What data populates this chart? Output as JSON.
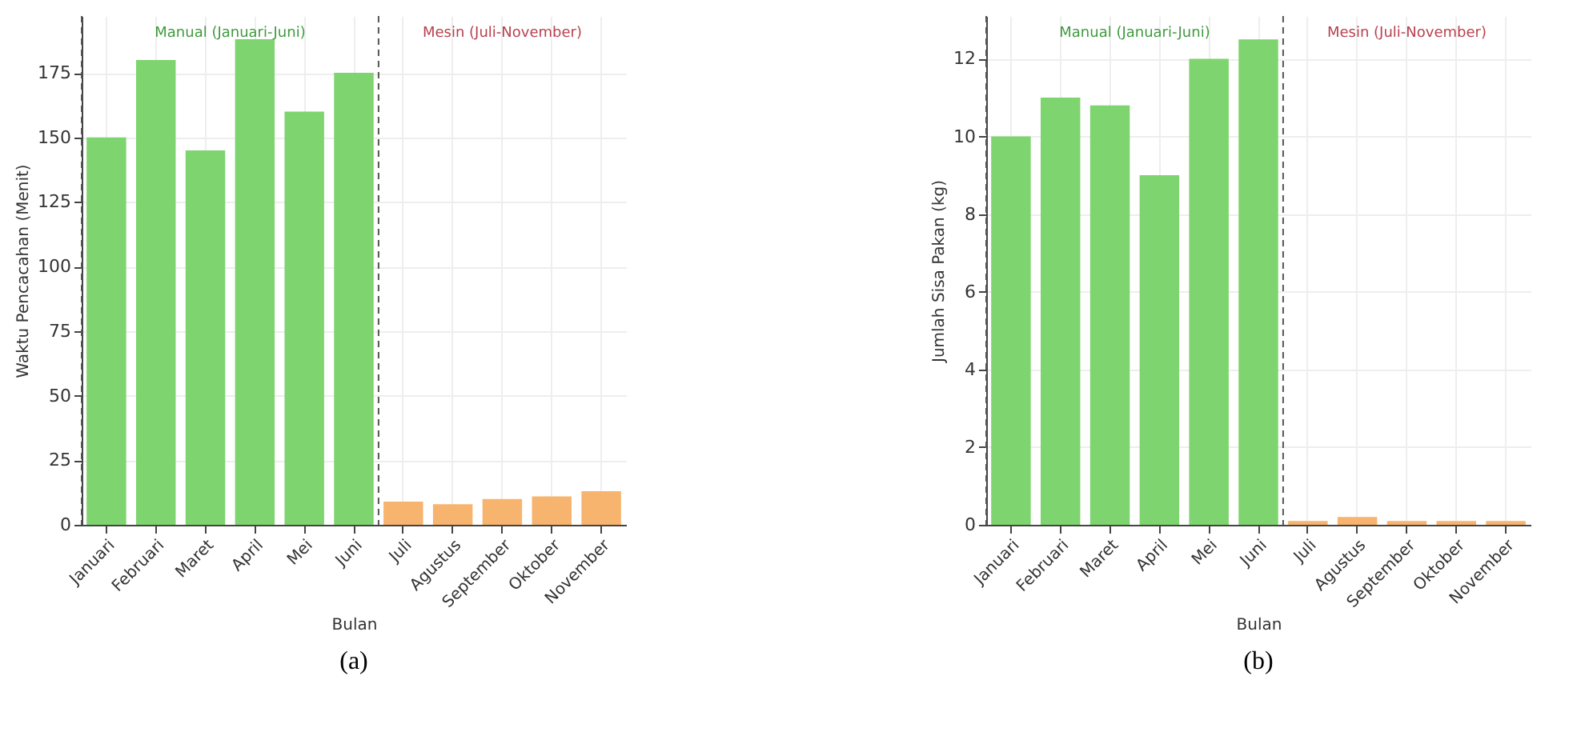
{
  "chart_data": [
    {
      "type": "bar",
      "title": "(a)",
      "xlabel": "Bulan",
      "ylabel": "Waktu Pencacahan (Menit)",
      "categories": [
        "Januari",
        "Februari",
        "Maret",
        "April",
        "Mei",
        "Juni",
        "Juli",
        "Agustus",
        "September",
        "Oktober",
        "November"
      ],
      "values": [
        150,
        180,
        145,
        188,
        160,
        175,
        9,
        8,
        10,
        11,
        13
      ],
      "colors": [
        "#7ed46f",
        "#7ed46f",
        "#7ed46f",
        "#7ed46f",
        "#7ed46f",
        "#7ed46f",
        "#f7b46e",
        "#f7b46e",
        "#f7b46e",
        "#f7b46e",
        "#f7b46e"
      ],
      "ylim": [
        0,
        197
      ],
      "yticks": [
        0,
        25,
        50,
        75,
        100,
        125,
        150,
        175
      ],
      "grid": true,
      "ref_lines": [
        {
          "axis": "x",
          "value": "Juni",
          "color": "#555555",
          "line_style": "dashed"
        }
      ],
      "annotations": [
        "Manual (Januari-Juni)",
        "Mesin (Juli-November)"
      ]
    },
    {
      "type": "bar",
      "title": "(b)",
      "xlabel": "Bulan",
      "ylabel": "Jumlah Sisa Pakan (kg)",
      "categories": [
        "Januari",
        "Februari",
        "Maret",
        "April",
        "Mei",
        "Juni",
        "Juli",
        "Agustus",
        "September",
        "Oktober",
        "November"
      ],
      "values": [
        10,
        11,
        10.8,
        9,
        12,
        12.5,
        0.1,
        0.2,
        0.1,
        0.1,
        0.1
      ],
      "colors": [
        "#7ed46f",
        "#7ed46f",
        "#7ed46f",
        "#7ed46f",
        "#7ed46f",
        "#7ed46f",
        "#f7b46e",
        "#f7b46e",
        "#f7b46e",
        "#f7b46e",
        "#f7b46e"
      ],
      "ylim": [
        0,
        13.1
      ],
      "yticks": [
        0,
        2,
        4,
        6,
        8,
        10,
        12
      ],
      "grid": true,
      "ref_lines": [
        {
          "axis": "x",
          "value": "Juni",
          "color": "#555555",
          "line_style": "dashed"
        }
      ],
      "annotations": [
        "Manual (Januari-Juni)",
        "Mesin (Juli-November)"
      ]
    }
  ]
}
